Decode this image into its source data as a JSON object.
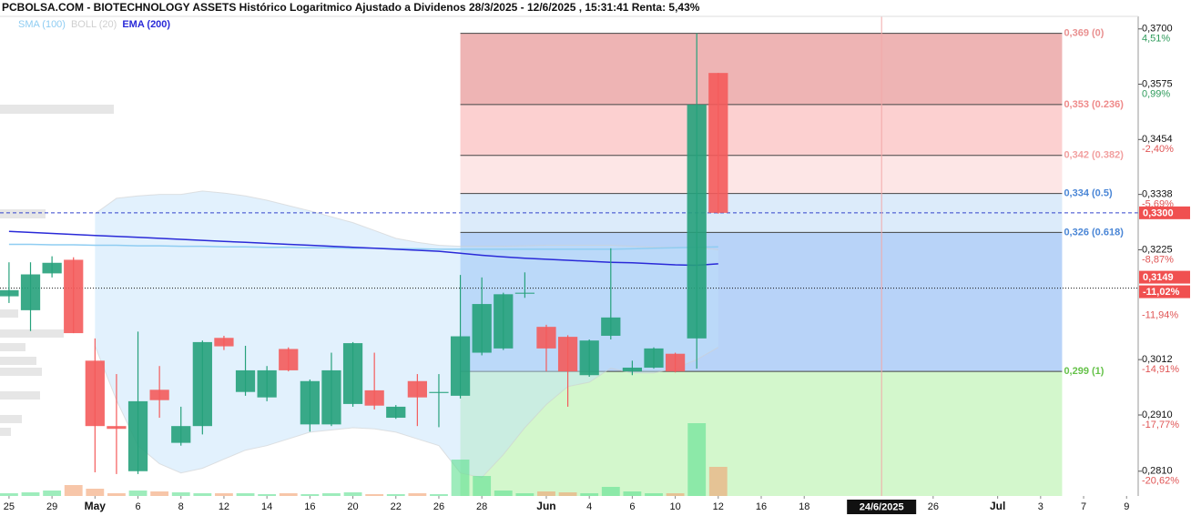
{
  "header": {
    "title": "PCBOLSA.COM - BIOTECHNOLOGY ASSETS Histórico Logaritmico Ajustado a Dividenos 28/3/2025 - 12/6/2025 , 15:31:41 Renta: 5,43%"
  },
  "chart_data": {
    "type": "candlestick",
    "log_scale": true,
    "legend": [
      {
        "name": "SMA (100)",
        "color": "#8fcdf2"
      },
      {
        "name": "BOLL (20)",
        "color": "#cfcfcf"
      },
      {
        "name": "EMA (200)",
        "color": "#2a2ad8"
      }
    ],
    "up_color": "#26a17b",
    "down_color": "#f45b5b",
    "xlim": [
      -0.42,
      52.54
    ],
    "xticks": [
      {
        "value": 0,
        "label": "25"
      },
      {
        "value": 2,
        "label": "29"
      },
      {
        "value": 4,
        "label": "May"
      },
      {
        "value": 6,
        "label": "6"
      },
      {
        "value": 8,
        "label": "8"
      },
      {
        "value": 10,
        "label": "12"
      },
      {
        "value": 12,
        "label": "14"
      },
      {
        "value": 14,
        "label": "16"
      },
      {
        "value": 16,
        "label": "20"
      },
      {
        "value": 18,
        "label": "22"
      },
      {
        "value": 20,
        "label": "26"
      },
      {
        "value": 22,
        "label": "28"
      },
      {
        "value": 25,
        "label": "Jun"
      },
      {
        "value": 27,
        "label": "4"
      },
      {
        "value": 29,
        "label": "6"
      },
      {
        "value": 31,
        "label": "10"
      },
      {
        "value": 33,
        "label": "12"
      },
      {
        "value": 35,
        "label": "16"
      },
      {
        "value": 37,
        "label": "18"
      },
      {
        "value": 43,
        "label": "26"
      },
      {
        "value": 46,
        "label": "Jul"
      },
      {
        "value": 48,
        "label": "3"
      },
      {
        "value": 50,
        "label": "7"
      },
      {
        "value": 52,
        "label": "9"
      }
    ],
    "highlight_date": {
      "value": 40.6,
      "label": "24/6/2025"
    },
    "ylim": [
      0.2767,
      0.3729
    ],
    "yticks": [
      {
        "value": 0.37,
        "label": "0,3700"
      },
      {
        "value": 0.3575,
        "label": "0,3575"
      },
      {
        "value": 0.3454,
        "label": "0,3454"
      },
      {
        "value": 0.3338,
        "label": "0,3338"
      },
      {
        "value": 0.3225,
        "label": "0,3225"
      },
      {
        "value": 0.3012,
        "label": "0,3012"
      },
      {
        "value": 0.291,
        "label": "0,2910"
      },
      {
        "value": 0.281,
        "label": "0,2810"
      }
    ],
    "ytick_changes": [
      "4,51%",
      "0,99%",
      "-2,40%",
      "-5,69%",
      "-8,87%",
      "-14,91%",
      "-17,77%",
      "-20,62%"
    ],
    "extra_change": {
      "value": 0.3115,
      "label": "-11,94%"
    },
    "open": [
      0.3133,
      0.3106,
      0.3178,
      0.3205,
      0.301,
      0.289,
      0.281,
      0.2956,
      0.286,
      0.289,
      0.3053,
      0.2952,
      0.2942,
      0.3032,
      0.2893,
      0.2893,
      0.293,
      0.2955,
      0.2905,
      0.2972,
      0.295,
      0.2945,
      0.3025,
      0.3033,
      0.3138,
      0.3074,
      0.3055,
      0.2983,
      0.3057,
      0.299,
      0.2997,
      0.3023,
      0.3052,
      0.36
    ],
    "high": [
      0.32,
      0.32,
      0.3212,
      0.321,
      0.3052,
      0.2985,
      0.3065,
      0.3,
      0.2925,
      0.3048,
      0.3057,
      0.3038,
      0.3,
      0.3035,
      0.2975,
      0.3025,
      0.3045,
      0.3025,
      0.2928,
      0.2985,
      0.2985,
      0.3175,
      0.317,
      0.314,
      0.318,
      0.3078,
      0.3058,
      0.305,
      0.3228,
      0.301,
      0.3035,
      0.3025,
      0.369,
      0.36
    ],
    "low": [
      0.312,
      0.3066,
      0.317,
      0.3062,
      0.2808,
      0.2805,
      0.2805,
      0.2905,
      0.2855,
      0.2875,
      0.303,
      0.2945,
      0.2935,
      0.299,
      0.288,
      0.289,
      0.2925,
      0.292,
      0.2903,
      0.289,
      0.2888,
      0.294,
      0.302,
      0.303,
      0.313,
      0.299,
      0.2925,
      0.298,
      0.305,
      0.2983,
      0.2995,
      0.2988,
      0.2995,
      0.3298
    ],
    "close": [
      0.3145,
      0.3176,
      0.3199,
      0.3062,
      0.289,
      0.2885,
      0.2935,
      0.2937,
      0.289,
      0.3045,
      0.3037,
      0.2992,
      0.2992,
      0.2992,
      0.2972,
      0.2992,
      0.3043,
      0.2927,
      0.2925,
      0.2942,
      0.2952,
      0.3056,
      0.3118,
      0.3137,
      0.314,
      0.3033,
      0.299,
      0.3048,
      0.3092,
      0.2997,
      0.3033,
      0.299,
      0.353,
      0.33
    ],
    "volume": [
      3,
      4,
      6,
      12,
      8,
      3,
      6,
      5,
      4,
      3,
      3,
      3,
      2,
      3,
      2,
      3,
      4,
      2,
      2,
      3,
      2,
      40,
      22,
      6,
      3,
      5,
      4,
      3,
      10,
      5,
      3,
      3,
      80,
      32
    ],
    "sma": [
      0.3236,
      0.3236,
      0.3235,
      0.3235,
      0.3234,
      0.3234,
      0.3233,
      0.3233,
      0.3232,
      0.3232,
      0.3231,
      0.3231,
      0.323,
      0.323,
      0.3229,
      0.3229,
      0.3228,
      0.3228,
      0.3227,
      0.3227,
      0.3226,
      0.3226,
      0.3226,
      0.3226,
      0.3226,
      0.3226,
      0.3226,
      0.3226,
      0.3226,
      0.3227,
      0.3228,
      0.3229,
      0.323,
      0.3231
    ],
    "ema": [
      0.3262,
      0.326,
      0.3258,
      0.3256,
      0.3254,
      0.3252,
      0.325,
      0.3248,
      0.3246,
      0.3244,
      0.3242,
      0.324,
      0.3238,
      0.3236,
      0.3234,
      0.3232,
      0.323,
      0.3228,
      0.3226,
      0.3224,
      0.3222,
      0.3218,
      0.3214,
      0.3211,
      0.3208,
      0.3206,
      0.3204,
      0.3202,
      0.32,
      0.3199,
      0.3197,
      0.3195,
      0.3194,
      0.3197
    ],
    "boll_upper": [
      null,
      null,
      null,
      null,
      0.3298,
      0.333,
      0.3335,
      0.3338,
      0.3338,
      0.3345,
      0.3341,
      0.3335,
      0.3326,
      0.3315,
      0.3304,
      0.3292,
      0.328,
      0.3264,
      0.3248,
      0.324,
      0.3234,
      0.3232,
      0.3232,
      0.3232,
      0.3233,
      0.3234,
      0.3234,
      0.3234,
      0.3234,
      0.3232,
      0.323,
      0.323,
      0.323,
      0.3225
    ],
    "boll_lower": [
      null,
      null,
      null,
      null,
      0.3038,
      0.2937,
      0.2855,
      0.2823,
      0.2807,
      0.2815,
      0.2831,
      0.2847,
      0.2855,
      0.2867,
      0.2879,
      0.2883,
      0.2887,
      0.2885,
      0.2879,
      0.2867,
      0.2855,
      0.2807,
      0.2799,
      0.2839,
      0.2887,
      0.2929,
      0.2962,
      0.297,
      0.2996,
      0.2987,
      0.2987,
      0.2996,
      0.3012,
      0.3035
    ],
    "fib_range": [
      21,
      49
    ],
    "fib_levels": [
      {
        "value": 0.369,
        "label": "0,369 (0)"
      },
      {
        "value": 0.353,
        "label": "0,353 (0.236)"
      },
      {
        "value": 0.342,
        "label": "0,342 (0.382)"
      },
      {
        "value": 0.334,
        "label": "0,334 (0.5)"
      },
      {
        "value": 0.326,
        "label": "0,326 (0.618)"
      },
      {
        "value": 0.299,
        "label": "0,299 (1)"
      }
    ],
    "fib_colors": [
      "#eeb4b4",
      "#fcd0d0",
      "#fde6e6",
      "#dcebfa",
      "#b8d3f8",
      "#d3f7cc"
    ],
    "fib_label_colors": [
      "#e99090",
      "#ef8a8a",
      "#f2a0a0",
      "#4a86d6",
      "#4a86d6",
      "#66c24a"
    ],
    "last_price": {
      "value": 0.33,
      "label": "0,3300"
    },
    "ref_price": {
      "value": 0.3149,
      "label": "0,3149",
      "change": "-11,02%"
    }
  }
}
